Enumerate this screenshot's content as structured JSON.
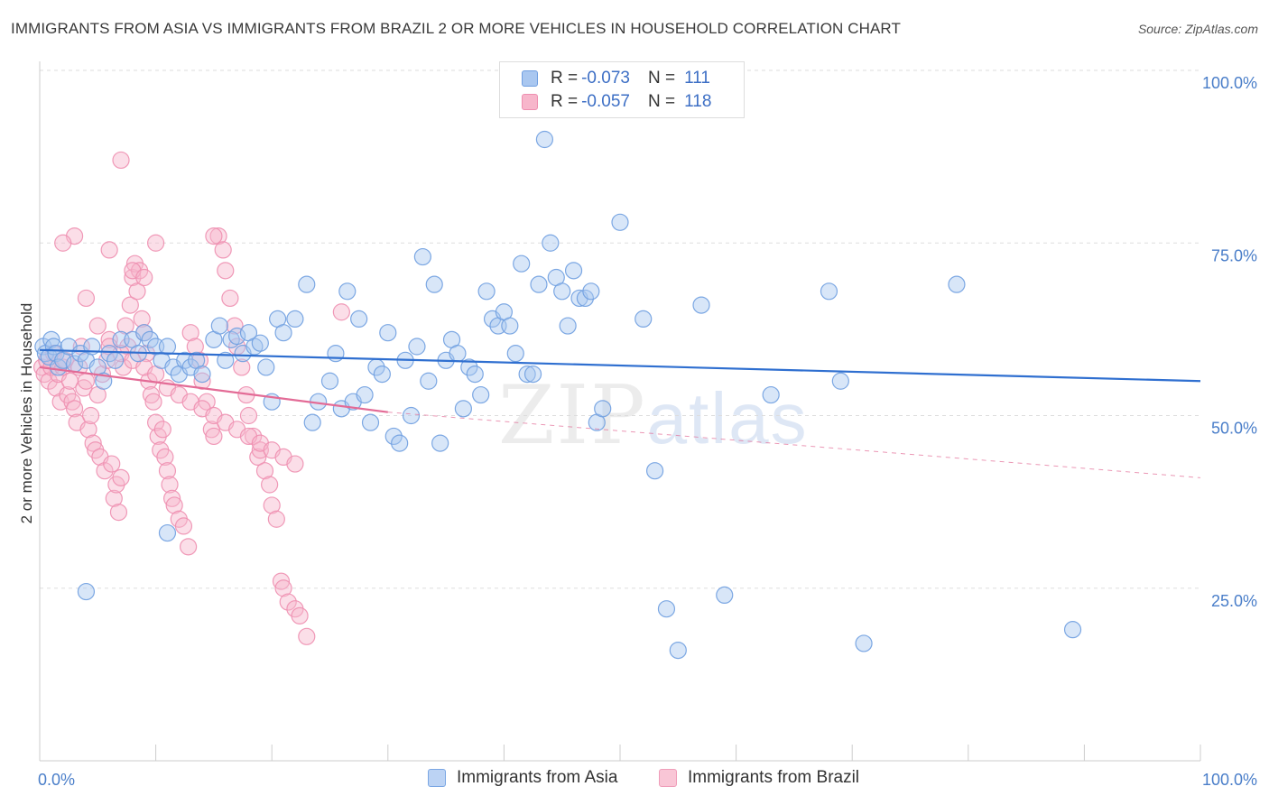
{
  "header": {
    "title": "IMMIGRANTS FROM ASIA VS IMMIGRANTS FROM BRAZIL 2 OR MORE VEHICLES IN HOUSEHOLD CORRELATION CHART",
    "source": "Source: ZipAtlas.com"
  },
  "watermark": {
    "zip": "ZIP",
    "atlas": "atlas"
  },
  "legend_top": {
    "rows": [
      {
        "r_label": "R =",
        "r_value": "-0.073",
        "n_label": "N =",
        "n_value": "111"
      },
      {
        "r_label": "R =",
        "r_value": "-0.057",
        "n_label": "N =",
        "n_value": "118"
      }
    ]
  },
  "legend_bottom": {
    "items": [
      {
        "label": "Immigrants from Asia"
      },
      {
        "label": "Immigrants from Brazil"
      }
    ]
  },
  "colors": {
    "asia_fill": "#a9c7f0",
    "asia_stroke": "#6f9ee0",
    "asia_line": "#2f6fd0",
    "brazil_fill": "#f7b6cb",
    "brazil_stroke": "#ee8fb0",
    "brazil_line": "#e36b96",
    "tick_text": "#4a7ec9",
    "grid": "#dddddd"
  },
  "chart_data": {
    "type": "scatter",
    "title": "IMMIGRANTS FROM ASIA VS IMMIGRANTS FROM BRAZIL 2 OR MORE VEHICLES IN HOUSEHOLD CORRELATION CHART",
    "xlabel": "",
    "ylabel": "2 or more Vehicles in Household",
    "xlim": [
      0,
      100
    ],
    "ylim": [
      0,
      100
    ],
    "x_tick_labels": [
      "0.0%",
      "100.0%"
    ],
    "y_tick_labels": [
      "25.0%",
      "50.0%",
      "75.0%",
      "100.0%"
    ],
    "y_ticks": [
      25,
      50,
      75,
      100
    ],
    "grid": "horizontal dashed",
    "legend_position": "top-center",
    "series": [
      {
        "name": "Immigrants from Asia",
        "r": -0.073,
        "n": 111,
        "trend": {
          "x": [
            0,
            100
          ],
          "y": [
            59.5,
            55.0
          ]
        },
        "points": [
          [
            0.3,
            60
          ],
          [
            0.5,
            59
          ],
          [
            0.8,
            58.5
          ],
          [
            1,
            61
          ],
          [
            1.2,
            60
          ],
          [
            1.4,
            59
          ],
          [
            1.6,
            57
          ],
          [
            2,
            58
          ],
          [
            2.5,
            60
          ],
          [
            3,
            57.5
          ],
          [
            3.5,
            59
          ],
          [
            4,
            58
          ],
          [
            4.5,
            60
          ],
          [
            5,
            57
          ],
          [
            5.5,
            55
          ],
          [
            6,
            59
          ],
          [
            6.5,
            58
          ],
          [
            7,
            61
          ],
          [
            8,
            61
          ],
          [
            8.5,
            59
          ],
          [
            9,
            62
          ],
          [
            9.5,
            61
          ],
          [
            10,
            60
          ],
          [
            10.5,
            58
          ],
          [
            11,
            60
          ],
          [
            11.5,
            57
          ],
          [
            12,
            56
          ],
          [
            12.5,
            58
          ],
          [
            13,
            57
          ],
          [
            13.5,
            58
          ],
          [
            14,
            56
          ],
          [
            15,
            61
          ],
          [
            15.5,
            63
          ],
          [
            16,
            58
          ],
          [
            16.5,
            61
          ],
          [
            17,
            61.5
          ],
          [
            17.5,
            59
          ],
          [
            18,
            62
          ],
          [
            18.5,
            60
          ],
          [
            19,
            60.5
          ],
          [
            19.5,
            57
          ],
          [
            20,
            52
          ],
          [
            20.5,
            64
          ],
          [
            21,
            62
          ],
          [
            22,
            64
          ],
          [
            23,
            69
          ],
          [
            23.5,
            49
          ],
          [
            24,
            52
          ],
          [
            25,
            55
          ],
          [
            25.5,
            59
          ],
          [
            26,
            51
          ],
          [
            26.5,
            68
          ],
          [
            27,
            52
          ],
          [
            27.5,
            64
          ],
          [
            28,
            53
          ],
          [
            28.5,
            49
          ],
          [
            29,
            57
          ],
          [
            29.5,
            56
          ],
          [
            30,
            62
          ],
          [
            30.5,
            47
          ],
          [
            31,
            46
          ],
          [
            31.5,
            58
          ],
          [
            32,
            50
          ],
          [
            32.5,
            60
          ],
          [
            33,
            73
          ],
          [
            33.5,
            55
          ],
          [
            34,
            69
          ],
          [
            34.5,
            46
          ],
          [
            35,
            58
          ],
          [
            35.5,
            61
          ],
          [
            36,
            59
          ],
          [
            36.5,
            51
          ],
          [
            37,
            57
          ],
          [
            37.5,
            56
          ],
          [
            38,
            53
          ],
          [
            38.5,
            68
          ],
          [
            39,
            64
          ],
          [
            39.5,
            63
          ],
          [
            40,
            65
          ],
          [
            40.5,
            63
          ],
          [
            41,
            59
          ],
          [
            41.5,
            72
          ],
          [
            42,
            56
          ],
          [
            42.5,
            56
          ],
          [
            43,
            69
          ],
          [
            43.5,
            90
          ],
          [
            44,
            75
          ],
          [
            44.5,
            70
          ],
          [
            45,
            68
          ],
          [
            45.5,
            63
          ],
          [
            46,
            71
          ],
          [
            46.5,
            67
          ],
          [
            47,
            67
          ],
          [
            47.5,
            68
          ],
          [
            48,
            49
          ],
          [
            48.5,
            51
          ],
          [
            50,
            78
          ],
          [
            52,
            64
          ],
          [
            53,
            42
          ],
          [
            54,
            22
          ],
          [
            55,
            16
          ],
          [
            57,
            66
          ],
          [
            59,
            24
          ],
          [
            63,
            53
          ],
          [
            68,
            68
          ],
          [
            69,
            55
          ],
          [
            71,
            17
          ],
          [
            79,
            69
          ],
          [
            89,
            19
          ],
          [
            4,
            24.5
          ],
          [
            11,
            33
          ]
        ]
      },
      {
        "name": "Immigrants from Brazil",
        "r": -0.057,
        "n": 118,
        "trend": {
          "x": [
            0,
            30
          ],
          "y": [
            57.0,
            50.5
          ]
        },
        "trend_dashed": {
          "x": [
            30,
            100
          ],
          "y": [
            50.5,
            41.0
          ]
        },
        "points": [
          [
            0.2,
            57
          ],
          [
            0.4,
            56
          ],
          [
            0.6,
            58
          ],
          [
            0.8,
            55
          ],
          [
            1,
            57
          ],
          [
            1.2,
            59
          ],
          [
            1.4,
            54
          ],
          [
            1.6,
            56
          ],
          [
            1.8,
            52
          ],
          [
            2,
            57
          ],
          [
            2.2,
            58
          ],
          [
            2.4,
            53
          ],
          [
            2.6,
            55
          ],
          [
            2.8,
            52
          ],
          [
            3,
            51
          ],
          [
            3.2,
            49
          ],
          [
            3.4,
            57
          ],
          [
            3.6,
            60
          ],
          [
            3.8,
            54
          ],
          [
            4,
            55
          ],
          [
            4.2,
            48
          ],
          [
            4.4,
            50
          ],
          [
            4.6,
            46
          ],
          [
            4.8,
            45
          ],
          [
            5,
            53
          ],
          [
            5.2,
            44
          ],
          [
            5.4,
            56
          ],
          [
            5.6,
            42
          ],
          [
            5.8,
            58
          ],
          [
            6,
            61
          ],
          [
            6.2,
            43
          ],
          [
            6.4,
            38
          ],
          [
            6.6,
            40
          ],
          [
            6.8,
            36
          ],
          [
            7,
            41
          ],
          [
            7.2,
            57
          ],
          [
            7.4,
            63
          ],
          [
            7.6,
            60
          ],
          [
            7.8,
            66
          ],
          [
            8,
            70
          ],
          [
            8.2,
            72
          ],
          [
            8.4,
            68
          ],
          [
            8.6,
            71
          ],
          [
            8.8,
            64
          ],
          [
            9,
            62
          ],
          [
            9.2,
            59
          ],
          [
            9.4,
            55
          ],
          [
            9.6,
            53
          ],
          [
            9.8,
            52
          ],
          [
            10,
            49
          ],
          [
            10.2,
            47
          ],
          [
            10.4,
            45
          ],
          [
            10.6,
            48
          ],
          [
            10.8,
            44
          ],
          [
            11,
            42
          ],
          [
            11.2,
            40
          ],
          [
            11.4,
            38
          ],
          [
            11.6,
            37
          ],
          [
            12,
            35
          ],
          [
            12.4,
            34
          ],
          [
            12.8,
            31
          ],
          [
            13,
            62
          ],
          [
            13.4,
            60
          ],
          [
            13.8,
            58
          ],
          [
            14,
            55
          ],
          [
            14.4,
            52
          ],
          [
            14.8,
            48
          ],
          [
            15,
            47
          ],
          [
            15.4,
            76
          ],
          [
            15.8,
            74
          ],
          [
            16,
            71
          ],
          [
            16.4,
            67
          ],
          [
            16.8,
            63
          ],
          [
            17,
            60
          ],
          [
            17.4,
            57
          ],
          [
            17.8,
            53
          ],
          [
            18,
            50
          ],
          [
            18.4,
            47
          ],
          [
            18.8,
            44
          ],
          [
            19,
            45
          ],
          [
            19.4,
            42
          ],
          [
            19.8,
            40
          ],
          [
            20,
            37
          ],
          [
            20.4,
            35
          ],
          [
            20.8,
            26
          ],
          [
            21,
            25
          ],
          [
            21.4,
            23
          ],
          [
            22,
            22
          ],
          [
            22.4,
            21
          ],
          [
            23,
            18
          ],
          [
            7,
            87
          ],
          [
            10,
            75
          ],
          [
            15,
            76
          ],
          [
            3,
            76
          ],
          [
            2,
            75
          ],
          [
            6,
            74
          ],
          [
            8,
            71
          ],
          [
            9,
            70
          ],
          [
            4,
            67
          ],
          [
            5,
            63
          ],
          [
            6,
            60
          ],
          [
            7,
            59
          ],
          [
            8,
            58
          ],
          [
            9,
            57
          ],
          [
            10,
            56
          ],
          [
            11,
            54
          ],
          [
            12,
            53
          ],
          [
            13,
            52
          ],
          [
            14,
            51
          ],
          [
            15,
            50
          ],
          [
            16,
            49
          ],
          [
            17,
            48
          ],
          [
            18,
            47
          ],
          [
            19,
            46
          ],
          [
            20,
            45
          ],
          [
            21,
            44
          ],
          [
            22,
            43
          ],
          [
            26,
            65
          ]
        ]
      }
    ]
  }
}
